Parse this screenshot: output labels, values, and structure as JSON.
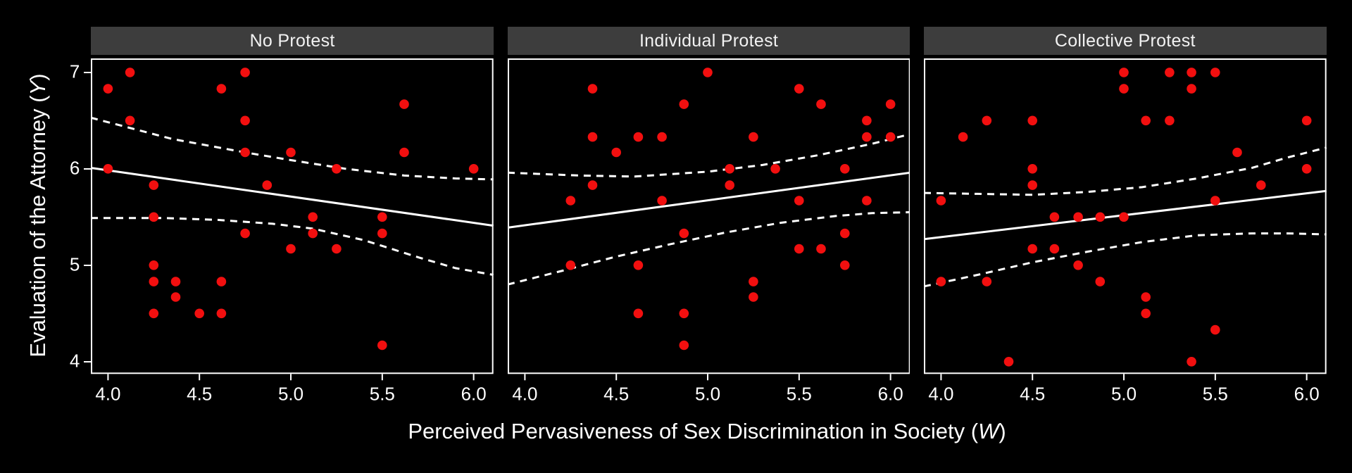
{
  "colors": {
    "background": "#000000",
    "panel_background": "#000000",
    "panel_border": "#ffffff",
    "strip_background": "#3d3d3d",
    "strip_text": "#f2f2f2",
    "axis_text": "#ffffff",
    "tick_mark": "#ffffff",
    "point": "#f20f0f",
    "fit_line": "#ffffff",
    "ci_line": "#ffffff"
  },
  "chart_data": {
    "type": "scatter",
    "facet_titles": [
      "No Protest",
      "Individual Protest",
      "Collective Protest"
    ],
    "xlabel": {
      "pre": "Perceived Pervasiveness of Sex Discrimination in Society (",
      "var": "W",
      "post": ")"
    },
    "ylabel": {
      "pre": "Evaluation of the Attorney (",
      "var": "Y",
      "post": ")"
    },
    "xlim": [
      3.906,
      6.108
    ],
    "ylim": [
      3.872,
      7.145
    ],
    "x_tick_values": [
      4.0,
      4.5,
      5.0,
      5.5,
      6.0
    ],
    "x_tick_labels": [
      "4.0",
      "4.5",
      "5.0",
      "5.5",
      "6.0"
    ],
    "y_tick_values": [
      7,
      6,
      5,
      4
    ],
    "y_tick_labels": [
      "7",
      "6",
      "5",
      "4"
    ],
    "grid": false,
    "legend": "none",
    "marker": "filled-circle",
    "fit_line_style": "solid",
    "ci_line_style": "dashed",
    "facets": [
      {
        "title": "No Protest",
        "points": [
          [
            4.12,
            7.0
          ],
          [
            4.75,
            7.0
          ],
          [
            4.0,
            6.83
          ],
          [
            4.62,
            6.83
          ],
          [
            4.12,
            6.5
          ],
          [
            4.75,
            6.5
          ],
          [
            5.62,
            6.67
          ],
          [
            4.75,
            6.17
          ],
          [
            5.0,
            6.17
          ],
          [
            5.62,
            6.17
          ],
          [
            4.0,
            6.0
          ],
          [
            5.25,
            6.0
          ],
          [
            6.0,
            6.0
          ],
          [
            4.25,
            5.83
          ],
          [
            4.87,
            5.83
          ],
          [
            4.25,
            5.5
          ],
          [
            5.12,
            5.5
          ],
          [
            5.5,
            5.5
          ],
          [
            4.75,
            5.33
          ],
          [
            5.12,
            5.33
          ],
          [
            5.5,
            5.33
          ],
          [
            5.0,
            5.17
          ],
          [
            5.25,
            5.17
          ],
          [
            4.25,
            5.0
          ],
          [
            4.25,
            4.83
          ],
          [
            4.37,
            4.83
          ],
          [
            4.62,
            4.83
          ],
          [
            4.37,
            4.67
          ],
          [
            4.25,
            4.5
          ],
          [
            4.5,
            4.5
          ],
          [
            4.62,
            4.5
          ],
          [
            5.5,
            4.17
          ]
        ],
        "fit": [
          [
            3.906,
            6.01
          ],
          [
            6.108,
            5.41
          ]
        ],
        "ci_upper": [
          [
            3.906,
            6.53
          ],
          [
            4.35,
            6.31
          ],
          [
            4.75,
            6.17
          ],
          [
            5.0,
            6.09
          ],
          [
            5.3,
            6.0
          ],
          [
            5.62,
            5.93
          ],
          [
            5.9,
            5.9
          ],
          [
            6.108,
            5.89
          ]
        ],
        "ci_lower": [
          [
            3.906,
            5.49
          ],
          [
            4.3,
            5.49
          ],
          [
            4.6,
            5.47
          ],
          [
            4.9,
            5.43
          ],
          [
            5.12,
            5.38
          ],
          [
            5.4,
            5.26
          ],
          [
            5.7,
            5.08
          ],
          [
            5.9,
            4.97
          ],
          [
            6.108,
            4.9
          ]
        ]
      },
      {
        "title": "Individual Protest",
        "points": [
          [
            5.0,
            7.0
          ],
          [
            4.37,
            6.83
          ],
          [
            5.5,
            6.83
          ],
          [
            4.87,
            6.67
          ],
          [
            5.62,
            6.67
          ],
          [
            6.0,
            6.67
          ],
          [
            5.87,
            6.5
          ],
          [
            4.37,
            6.33
          ],
          [
            4.62,
            6.33
          ],
          [
            4.75,
            6.33
          ],
          [
            5.25,
            6.33
          ],
          [
            5.87,
            6.33
          ],
          [
            6.0,
            6.33
          ],
          [
            4.5,
            6.17
          ],
          [
            5.12,
            6.0
          ],
          [
            5.37,
            6.0
          ],
          [
            5.75,
            6.0
          ],
          [
            4.37,
            5.83
          ],
          [
            5.12,
            5.83
          ],
          [
            4.25,
            5.67
          ],
          [
            4.75,
            5.67
          ],
          [
            5.5,
            5.67
          ],
          [
            5.87,
            5.67
          ],
          [
            4.87,
            5.33
          ],
          [
            5.75,
            5.33
          ],
          [
            5.5,
            5.17
          ],
          [
            5.62,
            5.17
          ],
          [
            4.25,
            5.0
          ],
          [
            4.62,
            5.0
          ],
          [
            5.75,
            5.0
          ],
          [
            5.25,
            4.83
          ],
          [
            5.25,
            4.67
          ],
          [
            4.62,
            4.5
          ],
          [
            4.87,
            4.5
          ],
          [
            4.87,
            4.17
          ]
        ],
        "fit": [
          [
            3.906,
            5.39
          ],
          [
            6.108,
            5.96
          ]
        ],
        "ci_upper": [
          [
            3.906,
            5.96
          ],
          [
            4.3,
            5.93
          ],
          [
            4.6,
            5.92
          ],
          [
            5.0,
            5.97
          ],
          [
            5.3,
            6.04
          ],
          [
            5.6,
            6.14
          ],
          [
            5.9,
            6.26
          ],
          [
            6.108,
            6.36
          ]
        ],
        "ci_lower": [
          [
            3.906,
            4.8
          ],
          [
            4.2,
            4.94
          ],
          [
            4.5,
            5.09
          ],
          [
            4.8,
            5.22
          ],
          [
            5.1,
            5.34
          ],
          [
            5.4,
            5.44
          ],
          [
            5.7,
            5.51
          ],
          [
            5.9,
            5.54
          ],
          [
            6.108,
            5.55
          ]
        ]
      },
      {
        "title": "Collective Protest",
        "points": [
          [
            5.0,
            7.0
          ],
          [
            5.25,
            7.0
          ],
          [
            5.37,
            7.0
          ],
          [
            5.5,
            7.0
          ],
          [
            5.0,
            6.83
          ],
          [
            5.37,
            6.83
          ],
          [
            4.25,
            6.5
          ],
          [
            4.5,
            6.5
          ],
          [
            5.12,
            6.5
          ],
          [
            5.25,
            6.5
          ],
          [
            6.0,
            6.5
          ],
          [
            4.12,
            6.33
          ],
          [
            5.62,
            6.17
          ],
          [
            4.5,
            6.0
          ],
          [
            6.0,
            6.0
          ],
          [
            4.5,
            5.83
          ],
          [
            5.75,
            5.83
          ],
          [
            4.0,
            5.67
          ],
          [
            5.5,
            5.67
          ],
          [
            4.62,
            5.5
          ],
          [
            4.75,
            5.5
          ],
          [
            4.87,
            5.5
          ],
          [
            5.0,
            5.5
          ],
          [
            4.5,
            5.17
          ],
          [
            4.62,
            5.17
          ],
          [
            4.75,
            5.0
          ],
          [
            4.0,
            4.83
          ],
          [
            4.25,
            4.83
          ],
          [
            4.87,
            4.83
          ],
          [
            5.12,
            4.67
          ],
          [
            5.12,
            4.5
          ],
          [
            5.5,
            4.33
          ],
          [
            4.37,
            4.0
          ],
          [
            5.37,
            4.0
          ]
        ],
        "fit": [
          [
            3.906,
            5.27
          ],
          [
            6.108,
            5.77
          ]
        ],
        "ci_upper": [
          [
            3.906,
            5.75
          ],
          [
            4.2,
            5.74
          ],
          [
            4.5,
            5.73
          ],
          [
            4.8,
            5.76
          ],
          [
            5.1,
            5.81
          ],
          [
            5.4,
            5.9
          ],
          [
            5.7,
            6.01
          ],
          [
            5.9,
            6.12
          ],
          [
            6.108,
            6.22
          ]
        ],
        "ci_lower": [
          [
            3.906,
            4.78
          ],
          [
            4.2,
            4.9
          ],
          [
            4.5,
            5.03
          ],
          [
            4.8,
            5.14
          ],
          [
            5.1,
            5.24
          ],
          [
            5.4,
            5.31
          ],
          [
            5.7,
            5.33
          ],
          [
            5.9,
            5.33
          ],
          [
            6.108,
            5.32
          ]
        ]
      }
    ]
  }
}
